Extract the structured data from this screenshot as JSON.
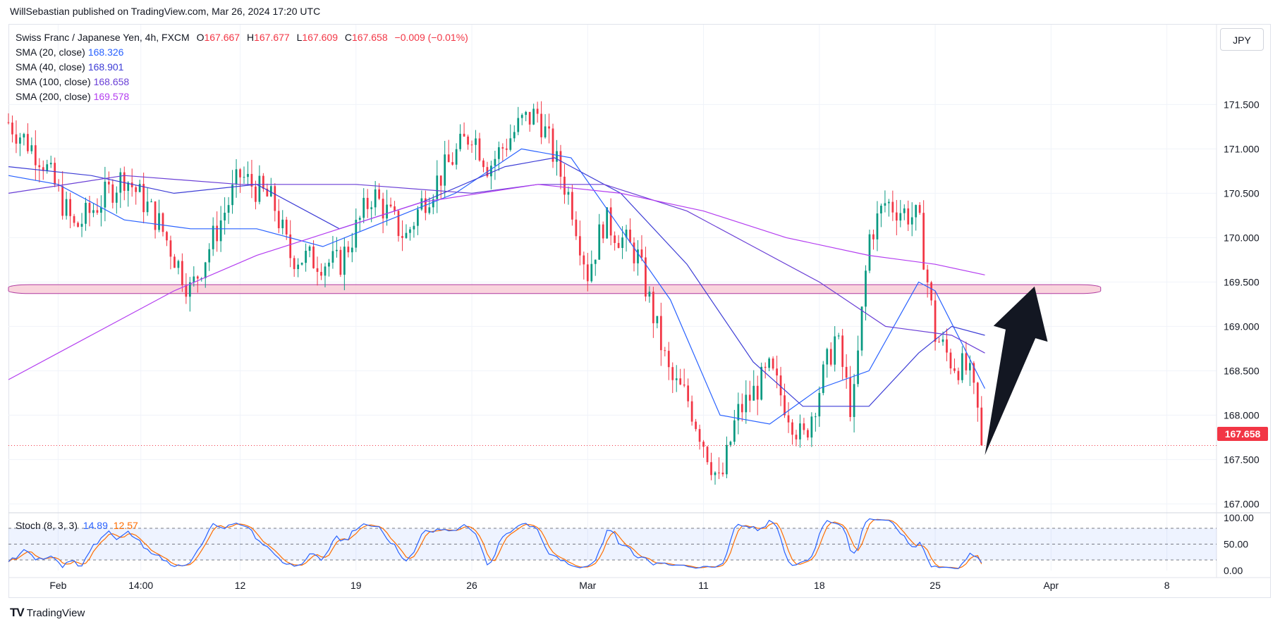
{
  "header": {
    "publisher_line": "WillSebastian published on TradingView.com, Mar 26, 2024 17:20 UTC"
  },
  "legend": {
    "symbol": "Swiss Franc / Japanese Yen, 4h, FXCM",
    "o_label": "O",
    "o": "167.667",
    "h_label": "H",
    "h": "167.677",
    "l_label": "L",
    "l": "167.609",
    "c_label": "C",
    "c": "167.658",
    "change": "−0.009 (−0.01%)",
    "sma": [
      {
        "label": "SMA (20, close)",
        "value": "168.326",
        "color": "#2962ff"
      },
      {
        "label": "SMA (40, close)",
        "value": "168.901",
        "color": "#3d3dd6"
      },
      {
        "label": "SMA (100, close)",
        "value": "168.658",
        "color": "#6a3fd6"
      },
      {
        "label": "SMA (200, close)",
        "value": "169.578",
        "color": "#b33cf0"
      }
    ]
  },
  "currency_button": "JPY",
  "last_price_tag": "167.658",
  "stoch_legend": {
    "label": "Stoch (8, 3, 3)",
    "k": "14.89",
    "d": "12.57",
    "k_color": "#2962ff",
    "d_color": "#ff6d00"
  },
  "footer": {
    "brand": "TradingView",
    "logo": "TV"
  },
  "colors": {
    "up": "#089981",
    "down": "#f23645",
    "zone": "#f8c9d4",
    "zone_border": "#b03aa0",
    "arrow": "#131722"
  },
  "chart_data": {
    "type": "candlestick",
    "title": "Swiss Franc / Japanese Yen, 4h, FXCM",
    "x_ticks": [
      "Feb",
      "14:00",
      "12",
      "19",
      "26",
      "Mar",
      "11",
      "18",
      "25",
      "Apr",
      "8"
    ],
    "y_ticks": [
      "171.500",
      "171.000",
      "170.500",
      "170.000",
      "169.500",
      "169.000",
      "168.500",
      "168.000",
      "167.500",
      "167.000"
    ],
    "ylim": [
      166.9,
      172.4
    ],
    "x_range": [
      "2024-01-29",
      "2024-04-11"
    ],
    "grid": true,
    "last_price": 167.658,
    "support_zone": {
      "low": 169.37,
      "high": 169.47,
      "from": "2024-01-29",
      "to": "2024-04-04"
    },
    "anchor_points": [
      {
        "date": "2024-01-29",
        "price": 171.3
      },
      {
        "date": "2024-01-31",
        "price": 170.9
      },
      {
        "date": "2024-02-02",
        "price": 170.1
      },
      {
        "date": "2024-02-05",
        "price": 170.7
      },
      {
        "date": "2024-02-07",
        "price": 170.2
      },
      {
        "date": "2024-02-09",
        "price": 169.4
      },
      {
        "date": "2024-02-12",
        "price": 170.7
      },
      {
        "date": "2024-02-14",
        "price": 170.4
      },
      {
        "date": "2024-02-15",
        "price": 169.8
      },
      {
        "date": "2024-02-18",
        "price": 169.7
      },
      {
        "date": "2024-02-20",
        "price": 170.5
      },
      {
        "date": "2024-02-22",
        "price": 170.0
      },
      {
        "date": "2024-02-23",
        "price": 170.4
      },
      {
        "date": "2024-02-26",
        "price": 171.2
      },
      {
        "date": "2024-02-27",
        "price": 170.8
      },
      {
        "date": "2024-02-29",
        "price": 171.3
      },
      {
        "date": "2024-03-01",
        "price": 171.4
      },
      {
        "date": "2024-03-03",
        "price": 170.4
      },
      {
        "date": "2024-03-04",
        "price": 169.6
      },
      {
        "date": "2024-03-05",
        "price": 170.2
      },
      {
        "date": "2024-03-07",
        "price": 169.8
      },
      {
        "date": "2024-03-08",
        "price": 169.1
      },
      {
        "date": "2024-03-09",
        "price": 168.4
      },
      {
        "date": "2024-03-10",
        "price": 168.2
      },
      {
        "date": "2024-03-12",
        "price": 167.2
      },
      {
        "date": "2024-03-13",
        "price": 168.0
      },
      {
        "date": "2024-03-15",
        "price": 168.5
      },
      {
        "date": "2024-03-17",
        "price": 167.7
      },
      {
        "date": "2024-03-19",
        "price": 168.9
      },
      {
        "date": "2024-03-20",
        "price": 168.0
      },
      {
        "date": "2024-03-21",
        "price": 170.0
      },
      {
        "date": "2024-03-22",
        "price": 170.4
      },
      {
        "date": "2024-03-24",
        "price": 170.2
      },
      {
        "date": "2024-03-25",
        "price": 168.9
      },
      {
        "date": "2024-03-26",
        "price": 168.6
      },
      {
        "date": "2024-03-27",
        "price": 168.5
      },
      {
        "date": "2024-03-28",
        "price": 167.66
      }
    ],
    "sma_series": [
      {
        "name": "SMA (20, close)",
        "color": "#2962ff",
        "points": [
          [
            "2024-01-29",
            170.7
          ],
          [
            "2024-02-01",
            170.6
          ],
          [
            "2024-02-05",
            170.2
          ],
          [
            "2024-02-09",
            170.1
          ],
          [
            "2024-02-13",
            170.1
          ],
          [
            "2024-02-17",
            169.9
          ],
          [
            "2024-02-21",
            170.2
          ],
          [
            "2024-02-25",
            170.5
          ],
          [
            "2024-02-29",
            171.0
          ],
          [
            "2024-03-03",
            170.9
          ],
          [
            "2024-03-06",
            170.1
          ],
          [
            "2024-03-09",
            169.3
          ],
          [
            "2024-03-12",
            168.0
          ],
          [
            "2024-03-15",
            167.9
          ],
          [
            "2024-03-18",
            168.3
          ],
          [
            "2024-03-21",
            168.5
          ],
          [
            "2024-03-24",
            169.5
          ],
          [
            "2024-03-25",
            169.4
          ],
          [
            "2024-03-28",
            168.3
          ]
        ]
      },
      {
        "name": "SMA (40, close)",
        "color": "#3d3dd6",
        "points": [
          [
            "2024-01-29",
            170.8
          ],
          [
            "2024-02-03",
            170.7
          ],
          [
            "2024-02-08",
            170.5
          ],
          [
            "2024-02-13",
            170.6
          ],
          [
            "2024-02-18",
            170.1
          ],
          [
            "2024-02-23",
            170.4
          ],
          [
            "2024-02-28",
            170.8
          ],
          [
            "2024-03-02",
            170.9
          ],
          [
            "2024-03-06",
            170.5
          ],
          [
            "2024-03-10",
            169.7
          ],
          [
            "2024-03-14",
            168.6
          ],
          [
            "2024-03-17",
            168.1
          ],
          [
            "2024-03-21",
            168.1
          ],
          [
            "2024-03-24",
            168.7
          ],
          [
            "2024-03-26",
            169.0
          ],
          [
            "2024-03-28",
            168.9
          ]
        ]
      },
      {
        "name": "SMA (100, close)",
        "color": "#6a3fd6",
        "points": [
          [
            "2024-01-29",
            170.5
          ],
          [
            "2024-02-05",
            170.7
          ],
          [
            "2024-02-12",
            170.6
          ],
          [
            "2024-02-19",
            170.6
          ],
          [
            "2024-02-26",
            170.5
          ],
          [
            "2024-03-01",
            170.6
          ],
          [
            "2024-03-05",
            170.6
          ],
          [
            "2024-03-10",
            170.3
          ],
          [
            "2024-03-14",
            169.9
          ],
          [
            "2024-03-18",
            169.5
          ],
          [
            "2024-03-22",
            169.0
          ],
          [
            "2024-03-26",
            168.9
          ],
          [
            "2024-03-28",
            168.7
          ]
        ]
      },
      {
        "name": "SMA (200, close)",
        "color": "#b33cf0",
        "points": [
          [
            "2024-01-29",
            168.4
          ],
          [
            "2024-02-03",
            168.9
          ],
          [
            "2024-02-08",
            169.4
          ],
          [
            "2024-02-13",
            169.8
          ],
          [
            "2024-02-18",
            170.1
          ],
          [
            "2024-02-23",
            170.4
          ],
          [
            "2024-03-01",
            170.6
          ],
          [
            "2024-03-06",
            170.5
          ],
          [
            "2024-03-11",
            170.3
          ],
          [
            "2024-03-16",
            170.0
          ],
          [
            "2024-03-21",
            169.8
          ],
          [
            "2024-03-25",
            169.7
          ],
          [
            "2024-03-28",
            169.58
          ]
        ]
      }
    ],
    "stochastic": {
      "name": "Stoch (8, 3, 3)",
      "ylim": [
        0,
        100
      ],
      "levels": [
        80,
        50,
        20
      ],
      "y_ticks": [
        "100.00",
        "50.00",
        "0.00"
      ],
      "k_value": 14.89,
      "d_value": 12.57
    },
    "annotation": {
      "type": "arrow",
      "from": {
        "date": "2024-03-28",
        "price": 167.55
      },
      "to": {
        "date": "2024-03-31",
        "price": 169.45
      }
    }
  }
}
